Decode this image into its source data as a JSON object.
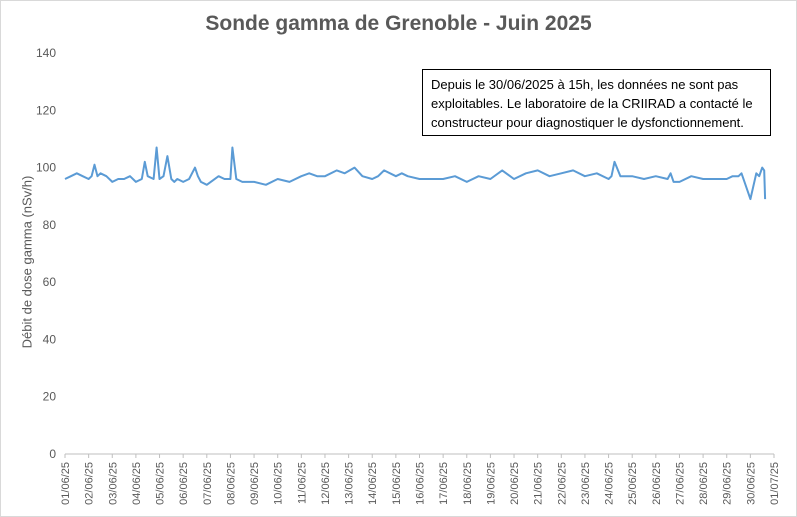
{
  "chart_data": {
    "type": "line",
    "title": "Sonde gamma de Grenoble - Juin 2025",
    "ylabel": "Débit de dose gamma (nSv/h)",
    "xlabel": "",
    "ylim": [
      0,
      140
    ],
    "yticks": [
      0,
      20,
      40,
      60,
      80,
      100,
      120,
      140
    ],
    "xlim": [
      "2025-06-01",
      "2025-07-01"
    ],
    "xtick_labels": [
      "01/06/25",
      "02/06/25",
      "03/06/25",
      "04/06/25",
      "05/06/25",
      "06/06/25",
      "07/06/25",
      "08/06/25",
      "09/06/25",
      "10/06/25",
      "11/06/25",
      "12/06/25",
      "13/06/25",
      "14/06/25",
      "15/06/25",
      "16/06/25",
      "17/06/25",
      "18/06/25",
      "19/06/25",
      "20/06/25",
      "21/06/25",
      "22/06/25",
      "23/06/25",
      "24/06/25",
      "25/06/25",
      "26/06/25",
      "27/06/25",
      "28/06/25",
      "29/06/25",
      "30/06/25",
      "01/07/25"
    ],
    "grid": false,
    "annotation": "Depuis le 30/06/2025  à 15h, les données ne sont pas exploitables. Le laboratoire de la CRIIRAD a contacté le constructeur pour diagnostiquer le dysfonctionnement.",
    "line_color": "#5b9bd5",
    "series": [
      {
        "x": [
          "2025-06-01 00:00",
          "2025-06-01 06:00",
          "2025-06-01 12:00",
          "2025-06-01 18:00",
          "2025-06-02 00:00",
          "2025-06-02 03:00",
          "2025-06-02 06:00",
          "2025-06-02 09:00",
          "2025-06-02 12:00",
          "2025-06-02 18:00",
          "2025-06-03 00:00",
          "2025-06-03 06:00",
          "2025-06-03 12:00",
          "2025-06-03 18:00",
          "2025-06-04 00:00",
          "2025-06-04 06:00",
          "2025-06-04 09:00",
          "2025-06-04 12:00",
          "2025-06-04 18:00",
          "2025-06-04 21:00",
          "2025-06-05 00:00",
          "2025-06-05 04:00",
          "2025-06-05 08:00",
          "2025-06-05 12:00",
          "2025-06-05 15:00",
          "2025-06-05 18:00",
          "2025-06-06 00:00",
          "2025-06-06 06:00",
          "2025-06-06 12:00",
          "2025-06-06 15:00",
          "2025-06-06 18:00",
          "2025-06-07 00:00",
          "2025-06-07 12:00",
          "2025-06-07 18:00",
          "2025-06-08 00:00",
          "2025-06-08 02:00",
          "2025-06-08 06:00",
          "2025-06-08 12:00",
          "2025-06-09 00:00",
          "2025-06-09 12:00",
          "2025-06-10 00:00",
          "2025-06-10 12:00",
          "2025-06-11 00:00",
          "2025-06-11 08:00",
          "2025-06-11 16:00",
          "2025-06-12 00:00",
          "2025-06-12 12:00",
          "2025-06-12 20:00",
          "2025-06-13 06:00",
          "2025-06-13 14:00",
          "2025-06-14 00:00",
          "2025-06-14 06:00",
          "2025-06-14 12:00",
          "2025-06-15 00:00",
          "2025-06-15 06:00",
          "2025-06-15 12:00",
          "2025-06-16 00:00",
          "2025-06-16 12:00",
          "2025-06-17 00:00",
          "2025-06-17 12:00",
          "2025-06-18 00:00",
          "2025-06-18 12:00",
          "2025-06-19 00:00",
          "2025-06-19 12:00",
          "2025-06-20 00:00",
          "2025-06-20 12:00",
          "2025-06-21 00:00",
          "2025-06-21 12:00",
          "2025-06-22 00:00",
          "2025-06-22 12:00",
          "2025-06-23 00:00",
          "2025-06-23 12:00",
          "2025-06-24 00:00",
          "2025-06-24 03:00",
          "2025-06-24 06:00",
          "2025-06-24 12:00",
          "2025-06-25 00:00",
          "2025-06-25 12:00",
          "2025-06-26 00:00",
          "2025-06-26 12:00",
          "2025-06-26 15:00",
          "2025-06-26 18:00",
          "2025-06-27 00:00",
          "2025-06-27 12:00",
          "2025-06-28 00:00",
          "2025-06-28 12:00",
          "2025-06-29 00:00",
          "2025-06-29 06:00",
          "2025-06-29 12:00",
          "2025-06-29 15:00",
          "2025-06-29 18:00",
          "2025-06-30 00:00",
          "2025-06-30 06:00",
          "2025-06-30 09:00",
          "2025-06-30 12:00",
          "2025-06-30 14:00",
          "2025-06-30 15:00"
        ],
        "y": [
          96,
          97,
          98,
          97,
          96,
          97,
          101,
          97,
          98,
          97,
          95,
          96,
          96,
          97,
          95,
          96,
          102,
          97,
          96,
          107,
          96,
          97,
          104,
          96,
          95,
          96,
          95,
          96,
          100,
          97,
          95,
          94,
          97,
          96,
          96,
          107,
          96,
          95,
          95,
          94,
          96,
          95,
          97,
          98,
          97,
          97,
          99,
          98,
          100,
          97,
          96,
          97,
          99,
          97,
          98,
          97,
          96,
          96,
          96,
          97,
          95,
          97,
          96,
          99,
          96,
          98,
          99,
          97,
          98,
          99,
          97,
          98,
          96,
          97,
          102,
          97,
          97,
          96,
          97,
          96,
          98,
          95,
          95,
          97,
          96,
          96,
          96,
          97,
          97,
          98,
          95,
          89,
          98,
          97,
          100,
          99,
          89
        ]
      }
    ]
  }
}
